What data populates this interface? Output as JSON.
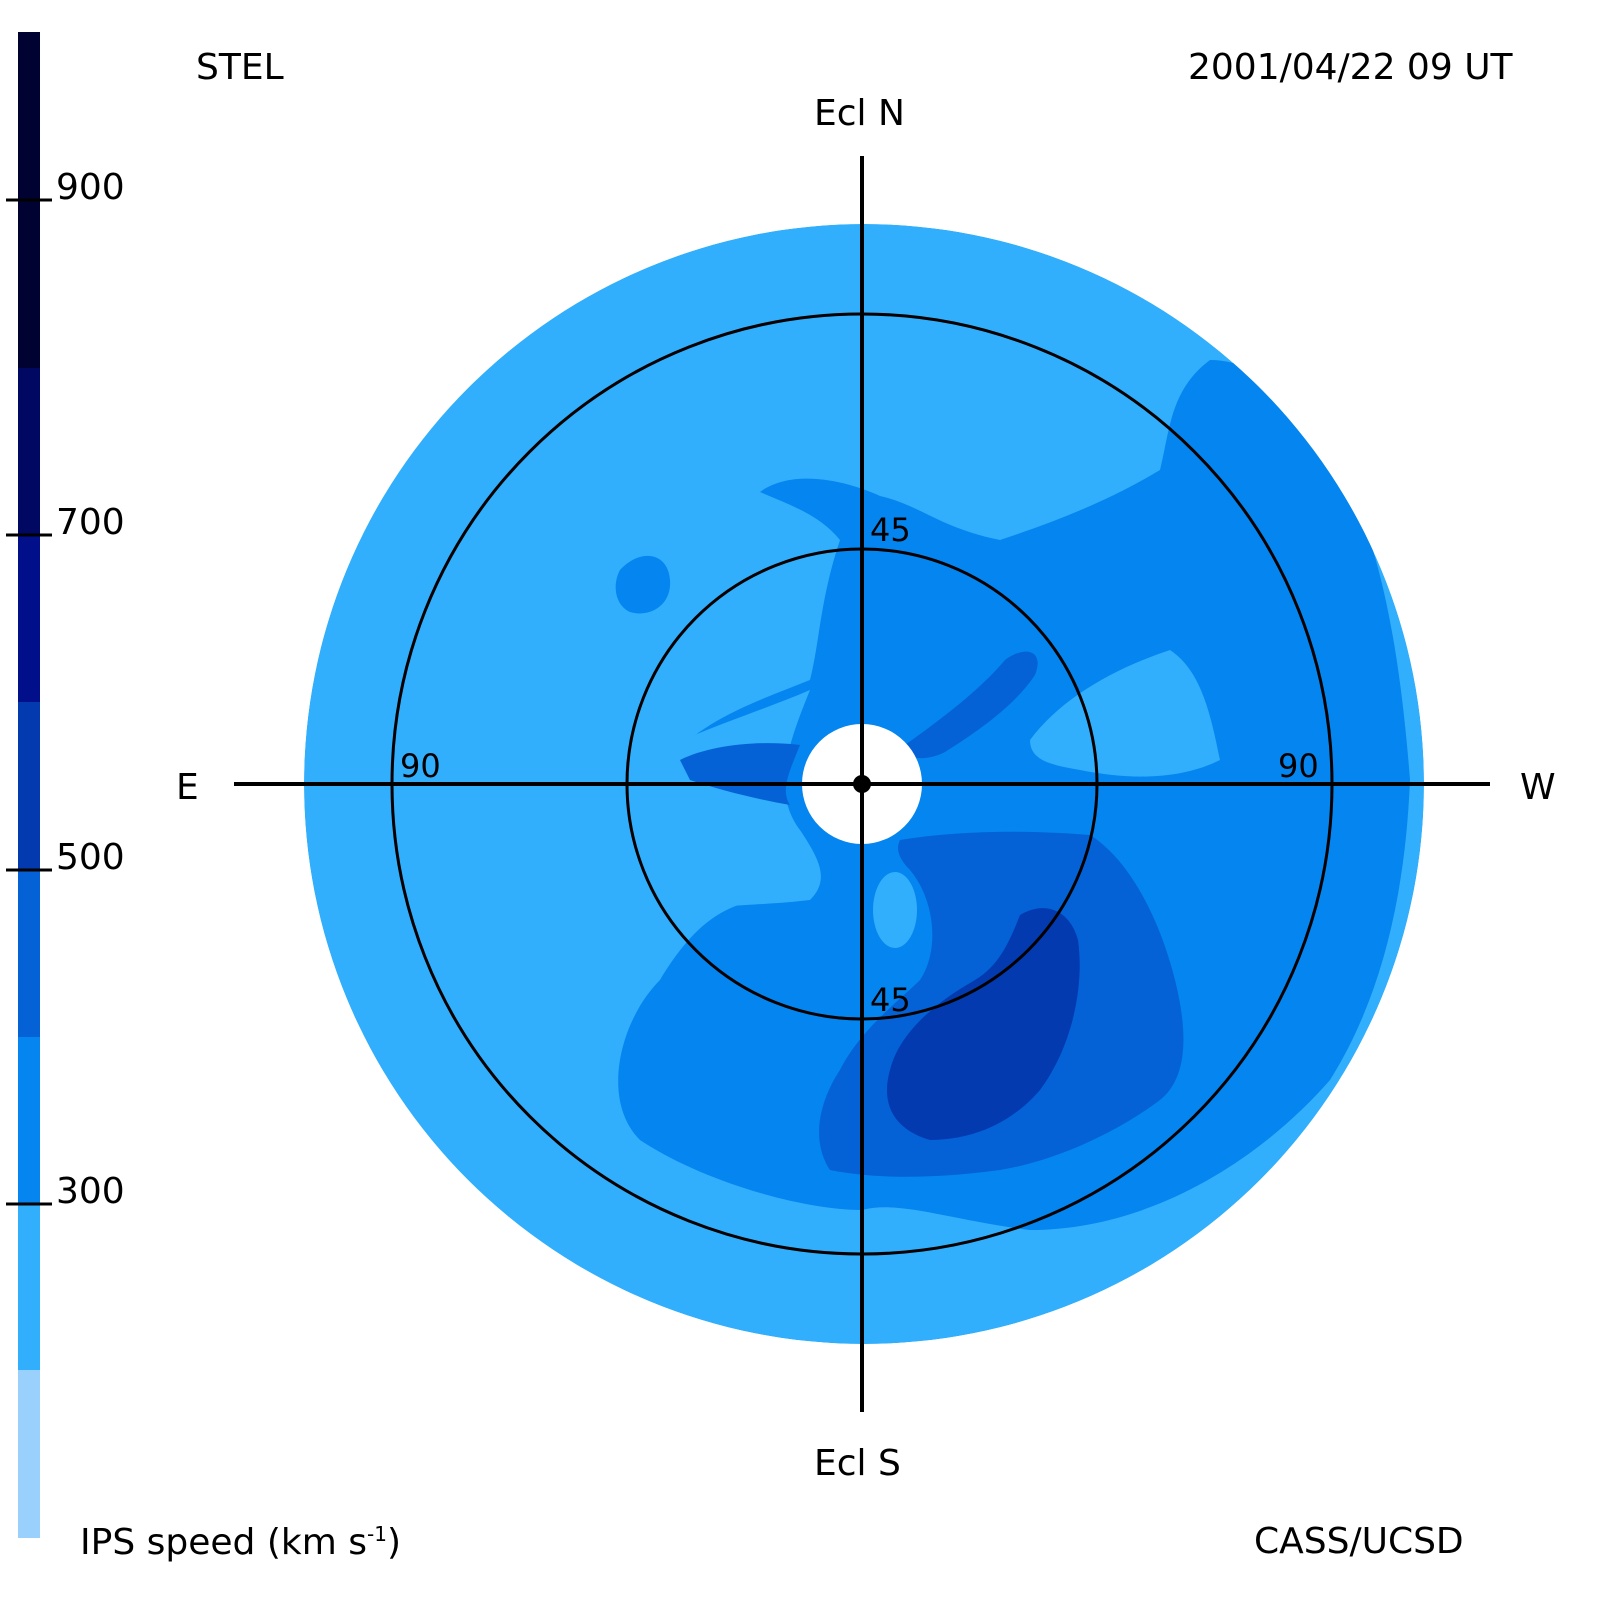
{
  "header": {
    "station": "STEL",
    "timestamp": "2001/04/22 09 UT"
  },
  "directions": {
    "north": "Ecl N",
    "south": "Ecl S",
    "east": "E",
    "west": "W"
  },
  "rings": {
    "inner_top": "45",
    "inner_bottom": "45",
    "outer_left": "90",
    "outer_right": "90"
  },
  "colorbar": {
    "title": "IPS speed (km s",
    "title_sup": "-1",
    "title_end": ")",
    "ticks": [
      "900",
      "700",
      "500",
      "300"
    ],
    "bands": [
      {
        "from": 200,
        "to": 300,
        "color": "#99d1fc"
      },
      {
        "from": 300,
        "to": 400,
        "color": "#31aefc"
      },
      {
        "from": 400,
        "to": 500,
        "color": "#0585ef"
      },
      {
        "from": 500,
        "to": 600,
        "color": "#0462d6"
      },
      {
        "from": 600,
        "to": 700,
        "color": "#033aaf"
      },
      {
        "from": 700,
        "to": 800,
        "color": "#01108a"
      },
      {
        "from": 800,
        "to": 900,
        "color": "#000861"
      },
      {
        "from": 900,
        "to": 1000,
        "color": "#000331"
      }
    ]
  },
  "credit": "CASS/UCSD"
}
